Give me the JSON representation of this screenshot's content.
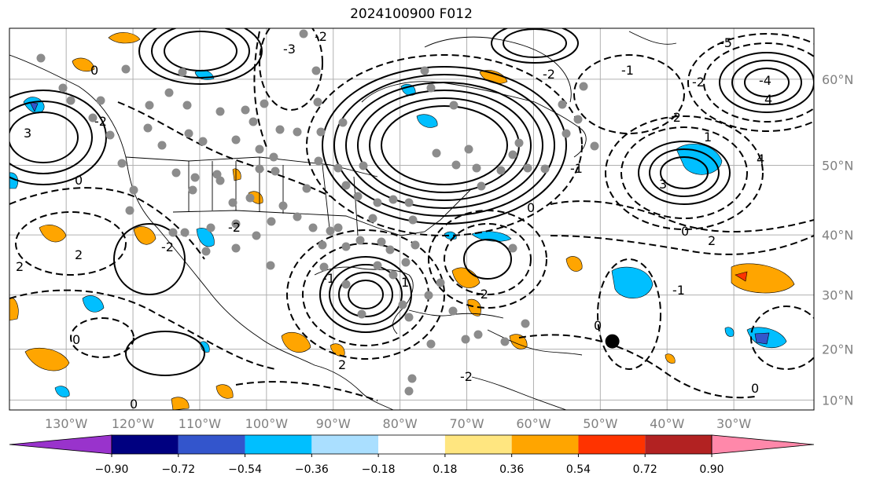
{
  "title": "2024100900 F012",
  "longitude_labels": [
    "130°W",
    "120°W",
    "110°W",
    "100°W",
    "90°W",
    "80°W",
    "70°W",
    "60°W",
    "50°W",
    "40°W",
    "30°W"
  ],
  "latitude_labels": [
    "60°N",
    "50°N",
    "40°N",
    "30°N",
    "20°N",
    "10°N"
  ],
  "colorbar": {
    "tick_labels": [
      "−0.90",
      "−0.72",
      "−0.54",
      "−0.36",
      "−0.18",
      "0.18",
      "0.36",
      "0.54",
      "0.72",
      "0.90"
    ],
    "colors": [
      "#9933cc",
      "#000080",
      "#3355cc",
      "#00bfff",
      "#aadfff",
      "#ffffff",
      "#ffe680",
      "#ffa500",
      "#ff3300",
      "#b22222",
      "#ff88aa"
    ]
  },
  "contour_labels": [
    "-3",
    "-2",
    "-2",
    "0",
    "0",
    "2",
    "2",
    "3",
    "3",
    "-5",
    "4",
    "-4",
    "0",
    "-2",
    "-2",
    "2",
    "-2",
    "0",
    "0",
    "-1",
    "1",
    "4",
    "-2",
    "0",
    "-2",
    "-1",
    "1",
    "0",
    "-2",
    "2",
    "-1",
    "-1",
    "0",
    "-2"
  ],
  "markers": {
    "storm_marker": {
      "lon": -48.2,
      "lat": 21.5
    }
  }
}
